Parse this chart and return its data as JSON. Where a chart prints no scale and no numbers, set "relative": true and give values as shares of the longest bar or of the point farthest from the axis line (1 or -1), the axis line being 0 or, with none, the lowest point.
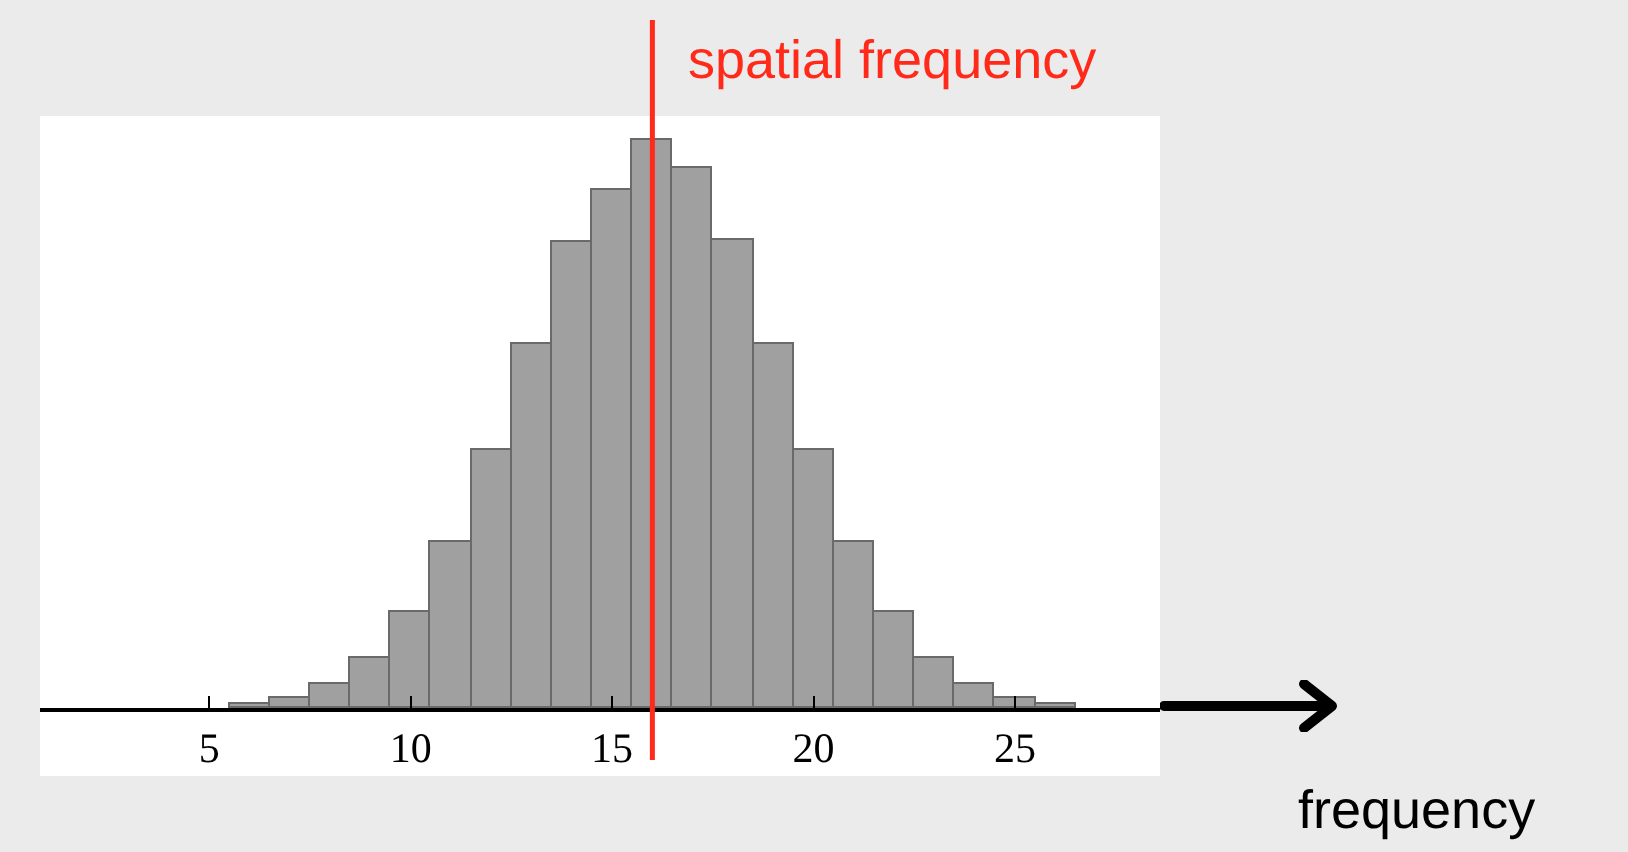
{
  "chart_data": {
    "type": "bar",
    "relative": true,
    "xlabel": "frequency",
    "x": [
      6,
      7,
      8,
      9,
      10,
      11,
      12,
      13,
      14,
      15,
      16,
      17,
      18,
      19,
      20,
      21,
      22,
      23,
      24,
      25,
      26
    ],
    "values": [
      0.008,
      0.019,
      0.042,
      0.089,
      0.169,
      0.292,
      0.454,
      0.642,
      0.822,
      0.912,
      1,
      0.951,
      0.823,
      0.642,
      0.454,
      0.292,
      0.169,
      0.089,
      0.042,
      0.019,
      0.008
    ],
    "color": "#a0a0a0",
    "xlim": [
      0.8,
      28.6
    ],
    "xticks": [
      5,
      10,
      15,
      20,
      25
    ],
    "ref_lines": [
      {
        "axis": "x",
        "value": 16,
        "label": "spatial frequency",
        "color": "#ff2a1a"
      }
    ]
  }
}
